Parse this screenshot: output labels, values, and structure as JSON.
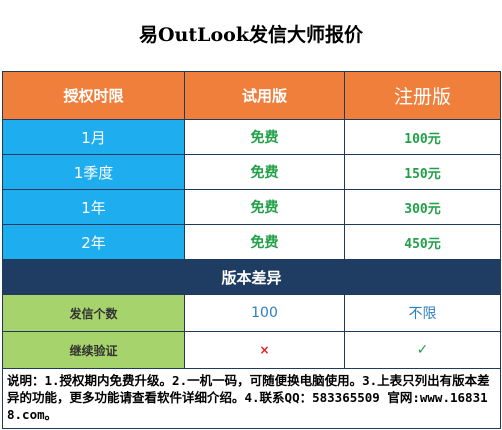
{
  "title": "易OutLook发信大师报价",
  "header": {
    "col1": "授权时限",
    "col2": "试用版",
    "col3": "注册版"
  },
  "rows": [
    {
      "period": "1月",
      "trial": "免费",
      "price": "100元"
    },
    {
      "period": "1季度",
      "trial": "免费",
      "price": "150元"
    },
    {
      "period": "1年",
      "trial": "免费",
      "price": "300元"
    },
    {
      "period": "2年",
      "trial": "免费",
      "price": "450元"
    }
  ],
  "section_title": "版本差异",
  "features": [
    {
      "label": "发信个数",
      "trial": "100",
      "registered": "不限"
    },
    {
      "label": "继续验证",
      "trial": "×",
      "registered": "✓"
    }
  ],
  "note": "说明：1.授权期内免费升级。2.一机一码，可随便换电脑使用。3.上表只列出有版本差异的功能，更多功能请查看软件详细介绍。4.联系QQ：583365509 官网:www.168318.com。"
}
